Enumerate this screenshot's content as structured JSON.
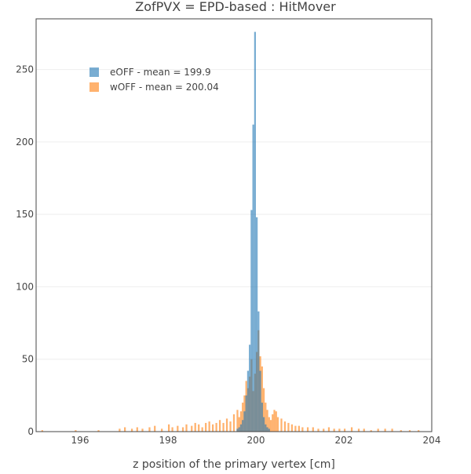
{
  "chart_data": {
    "type": "bar",
    "barmode": "overlay",
    "title": "ZofPVX = EPD-based : HitMover",
    "xlabel": "z position of the primary vertex [cm]",
    "ylabel": "",
    "xlim": [
      195,
      204
    ],
    "ylim": [
      0,
      285
    ],
    "xticks": [
      196,
      198,
      200,
      202,
      204
    ],
    "yticks": [
      0,
      50,
      100,
      150,
      200,
      250
    ],
    "grid": true,
    "legend_position": "top-left",
    "bin_width": 0.04,
    "series": [
      {
        "name": "eOFF - mean = 199.9",
        "color": "#1f77b4",
        "x": [
          199.58,
          199.62,
          199.66,
          199.7,
          199.74,
          199.78,
          199.82,
          199.86,
          199.9,
          199.94,
          199.98,
          200.02,
          200.06,
          200.1,
          200.14,
          200.18,
          200.22,
          200.26,
          200.3
        ],
        "values": [
          2,
          3,
          5,
          8,
          14,
          25,
          42,
          60,
          153,
          212,
          276,
          148,
          83,
          42,
          20,
          10,
          5,
          3,
          2
        ]
      },
      {
        "name": "wOFF - mean = 200.04",
        "color": "#ff7f0e",
        "x": [
          195.14,
          195.9,
          196.42,
          196.9,
          197.02,
          197.18,
          197.3,
          197.42,
          197.58,
          197.7,
          197.86,
          198.02,
          198.1,
          198.22,
          198.34,
          198.42,
          198.54,
          198.62,
          198.7,
          198.78,
          198.86,
          198.94,
          199.02,
          199.1,
          199.18,
          199.26,
          199.34,
          199.42,
          199.5,
          199.58,
          199.62,
          199.66,
          199.7,
          199.74,
          199.78,
          199.82,
          199.86,
          199.9,
          199.94,
          199.98,
          200.02,
          200.06,
          200.1,
          200.14,
          200.18,
          200.22,
          200.26,
          200.3,
          200.34,
          200.38,
          200.42,
          200.46,
          200.5,
          200.58,
          200.66,
          200.74,
          200.82,
          200.9,
          200.98,
          201.06,
          201.18,
          201.3,
          201.42,
          201.54,
          201.66,
          201.78,
          201.9,
          202.02,
          202.18,
          202.34,
          202.46,
          202.62,
          202.78,
          202.94,
          203.1,
          203.3,
          203.5,
          203.7
        ],
        "values": [
          1,
          1,
          1,
          2,
          3,
          2,
          3,
          2,
          3,
          4,
          2,
          5,
          3,
          4,
          3,
          5,
          4,
          6,
          5,
          3,
          6,
          7,
          5,
          6,
          8,
          6,
          9,
          7,
          12,
          15,
          10,
          14,
          20,
          25,
          35,
          30,
          38,
          50,
          28,
          40,
          55,
          70,
          52,
          45,
          30,
          20,
          15,
          10,
          8,
          12,
          15,
          14,
          10,
          9,
          7,
          6,
          5,
          4,
          4,
          3,
          3,
          3,
          2,
          2,
          3,
          2,
          2,
          2,
          3,
          2,
          2,
          1,
          2,
          2,
          2,
          1,
          1,
          1
        ]
      }
    ]
  }
}
